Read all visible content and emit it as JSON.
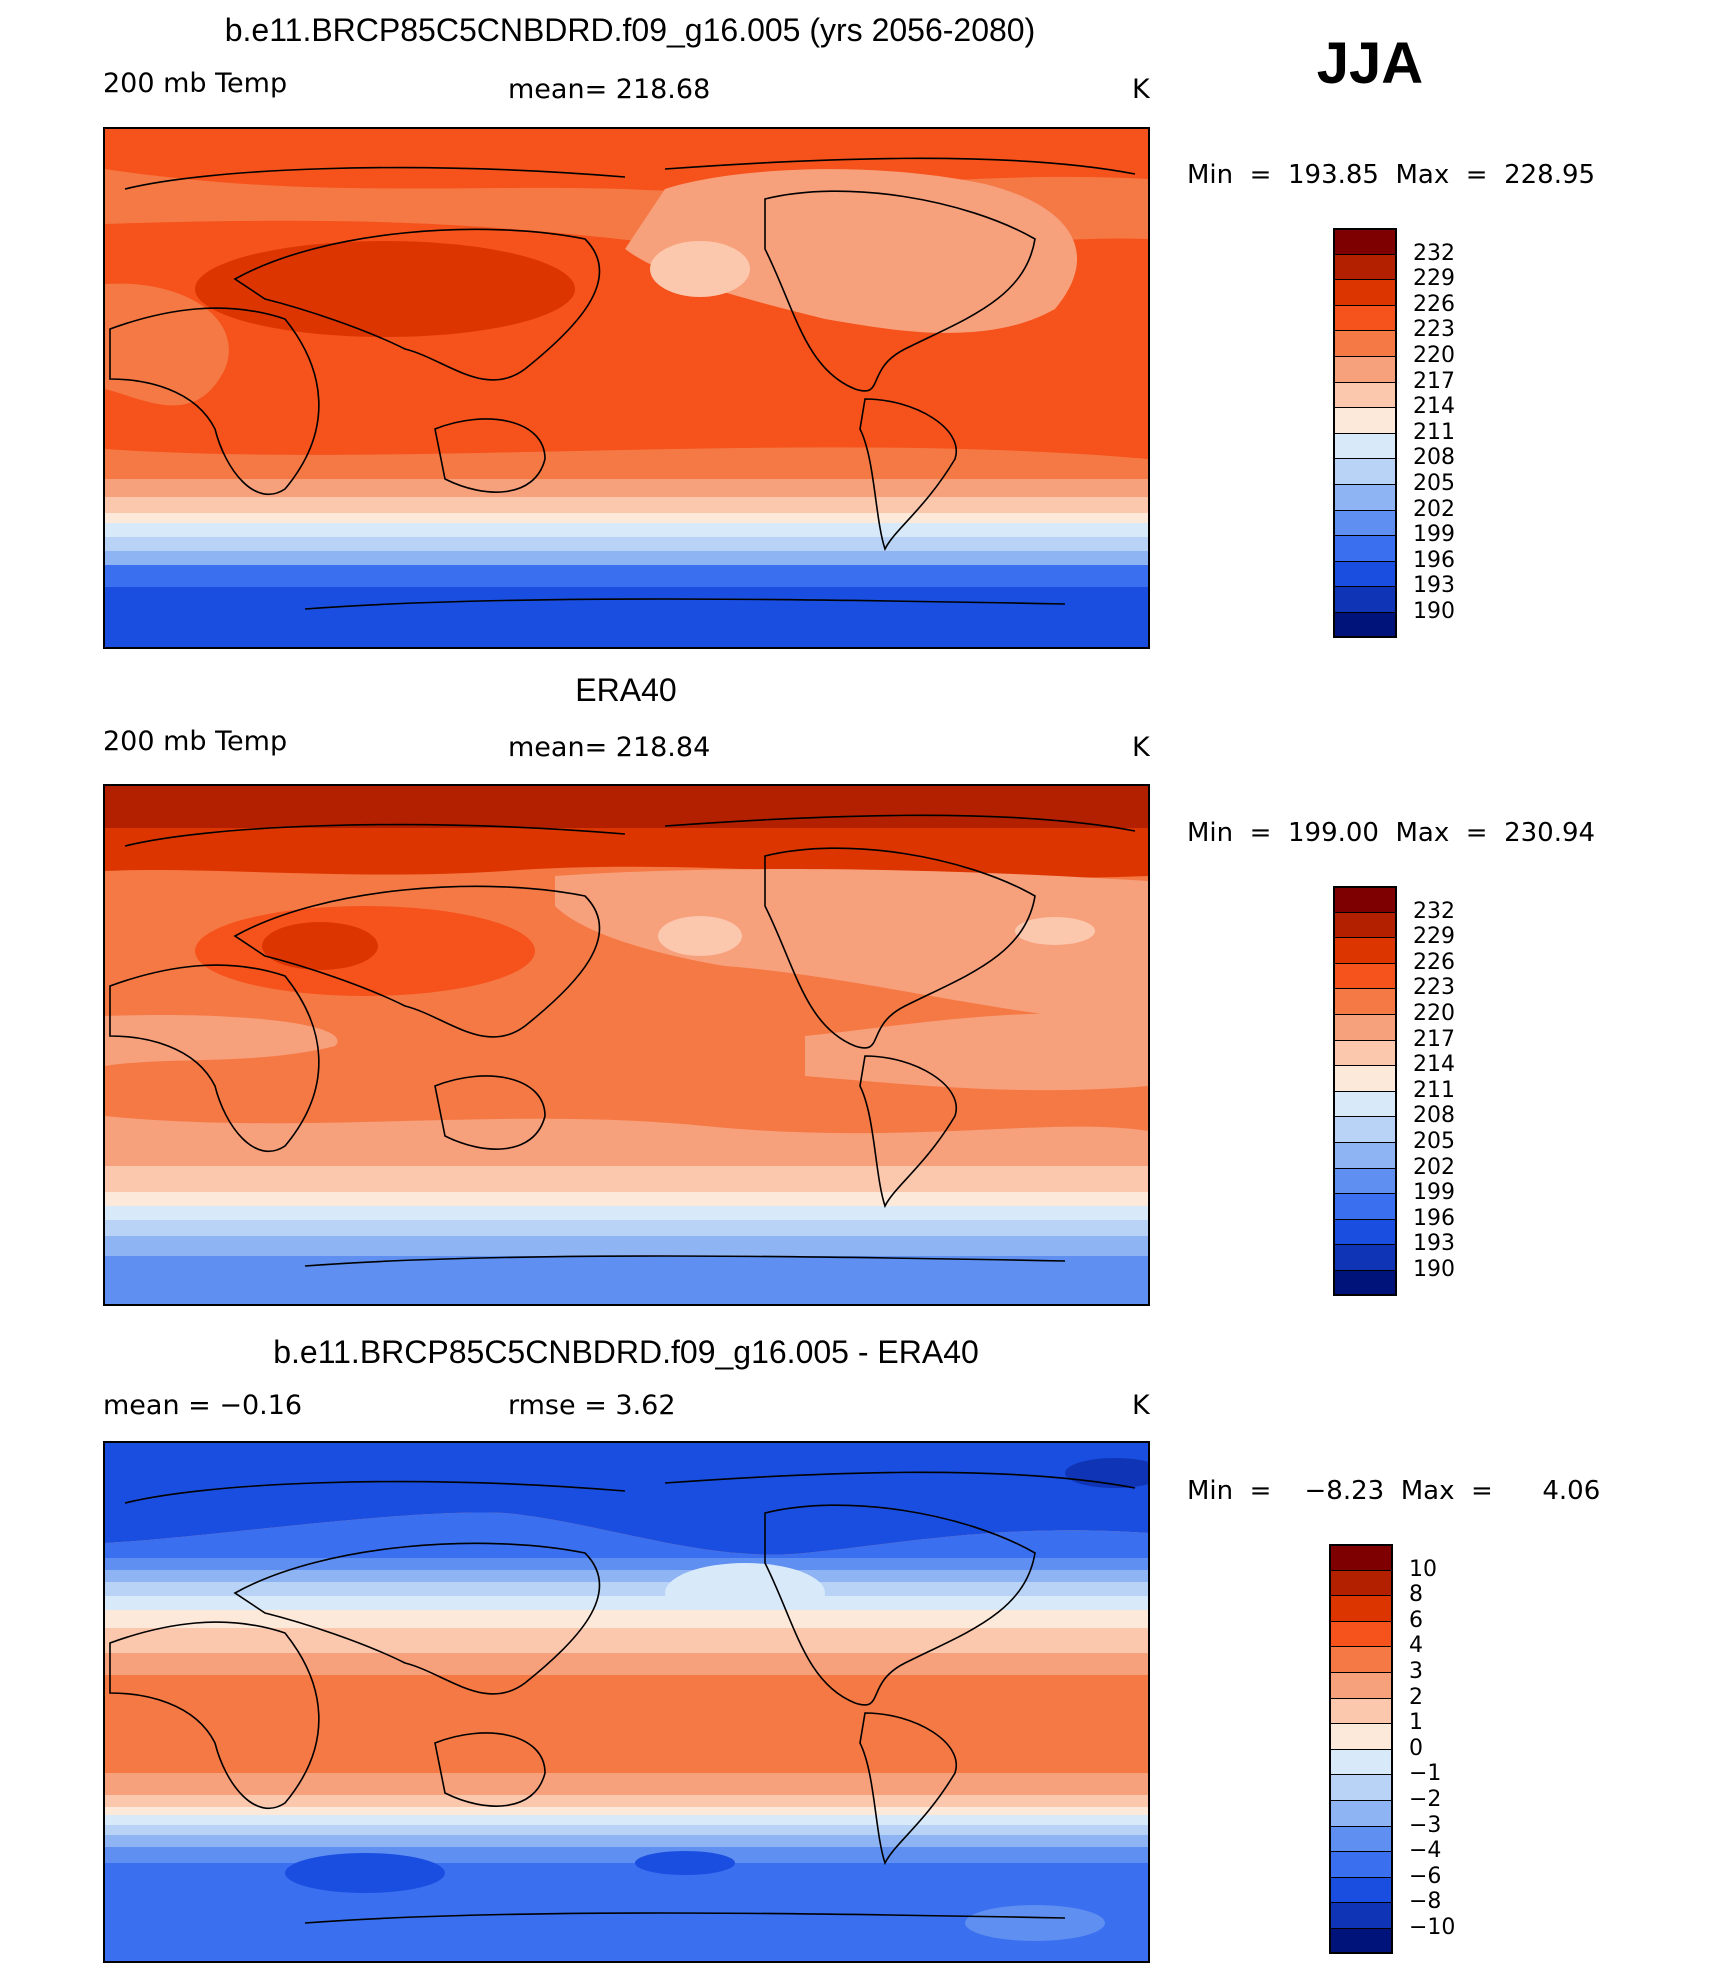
{
  "season": "JJA",
  "panels": [
    {
      "title": "b.e11.BRCP85C5CNBDRD.f09_g16.005 (yrs 2056-2080)",
      "left_label": "200 mb Temp",
      "center_label": "mean=  218.68",
      "units": "K",
      "minmax": "Min  =  193.85  Max  =  228.95",
      "legend_labels": [
        "232",
        "229",
        "226",
        "223",
        "220",
        "217",
        "214",
        "211",
        "208",
        "205",
        "202",
        "199",
        "196",
        "193",
        "190"
      ]
    },
    {
      "title": "ERA40",
      "left_label": "200 mb Temp",
      "center_label": "mean=  218.84",
      "units": "K",
      "minmax": "Min  =  199.00  Max  =  230.94",
      "legend_labels": [
        "232",
        "229",
        "226",
        "223",
        "220",
        "217",
        "214",
        "211",
        "208",
        "205",
        "202",
        "199",
        "196",
        "193",
        "190"
      ]
    },
    {
      "title": "b.e11.BRCP85C5CNBDRD.f09_g16.005 - ERA40",
      "left_label": "mean =    −0.16",
      "center_label": "rmse =      3.62",
      "units": "K",
      "minmax": "Min  =    −8.23  Max  =      4.06",
      "legend_labels": [
        "10",
        "8",
        "6",
        "4",
        "3",
        "2",
        "1",
        "0",
        "−1",
        "−2",
        "−3",
        "−4",
        "−6",
        "−8",
        "−10"
      ]
    }
  ],
  "colorbar": [
    "#7f0000",
    "#b32000",
    "#dc3500",
    "#f6521b",
    "#f57945",
    "#f7a07c",
    "#fbc7ad",
    "#fde9da",
    "#d8e9fa",
    "#b8d3f6",
    "#8fb4f3",
    "#5f8ff0",
    "#3a6ff0",
    "#1a4ee0",
    "#0f35b6",
    "#00137a"
  ],
  "field_colors": {
    "dark_red": "#b32000",
    "red": "#dc3500",
    "orange_red": "#f6521b",
    "orange": "#f57945",
    "salmon": "#f7a07c",
    "peach": "#fbc7ad",
    "cream": "#fde9da",
    "pale_blue": "#d8e9fa",
    "light_blue": "#b8d3f6",
    "sky_blue": "#8fb4f3",
    "mid_blue": "#5f8ff0",
    "blue": "#3a6ff0",
    "deep_blue": "#1a4ee0",
    "dark_blue": "#0f35b6"
  }
}
